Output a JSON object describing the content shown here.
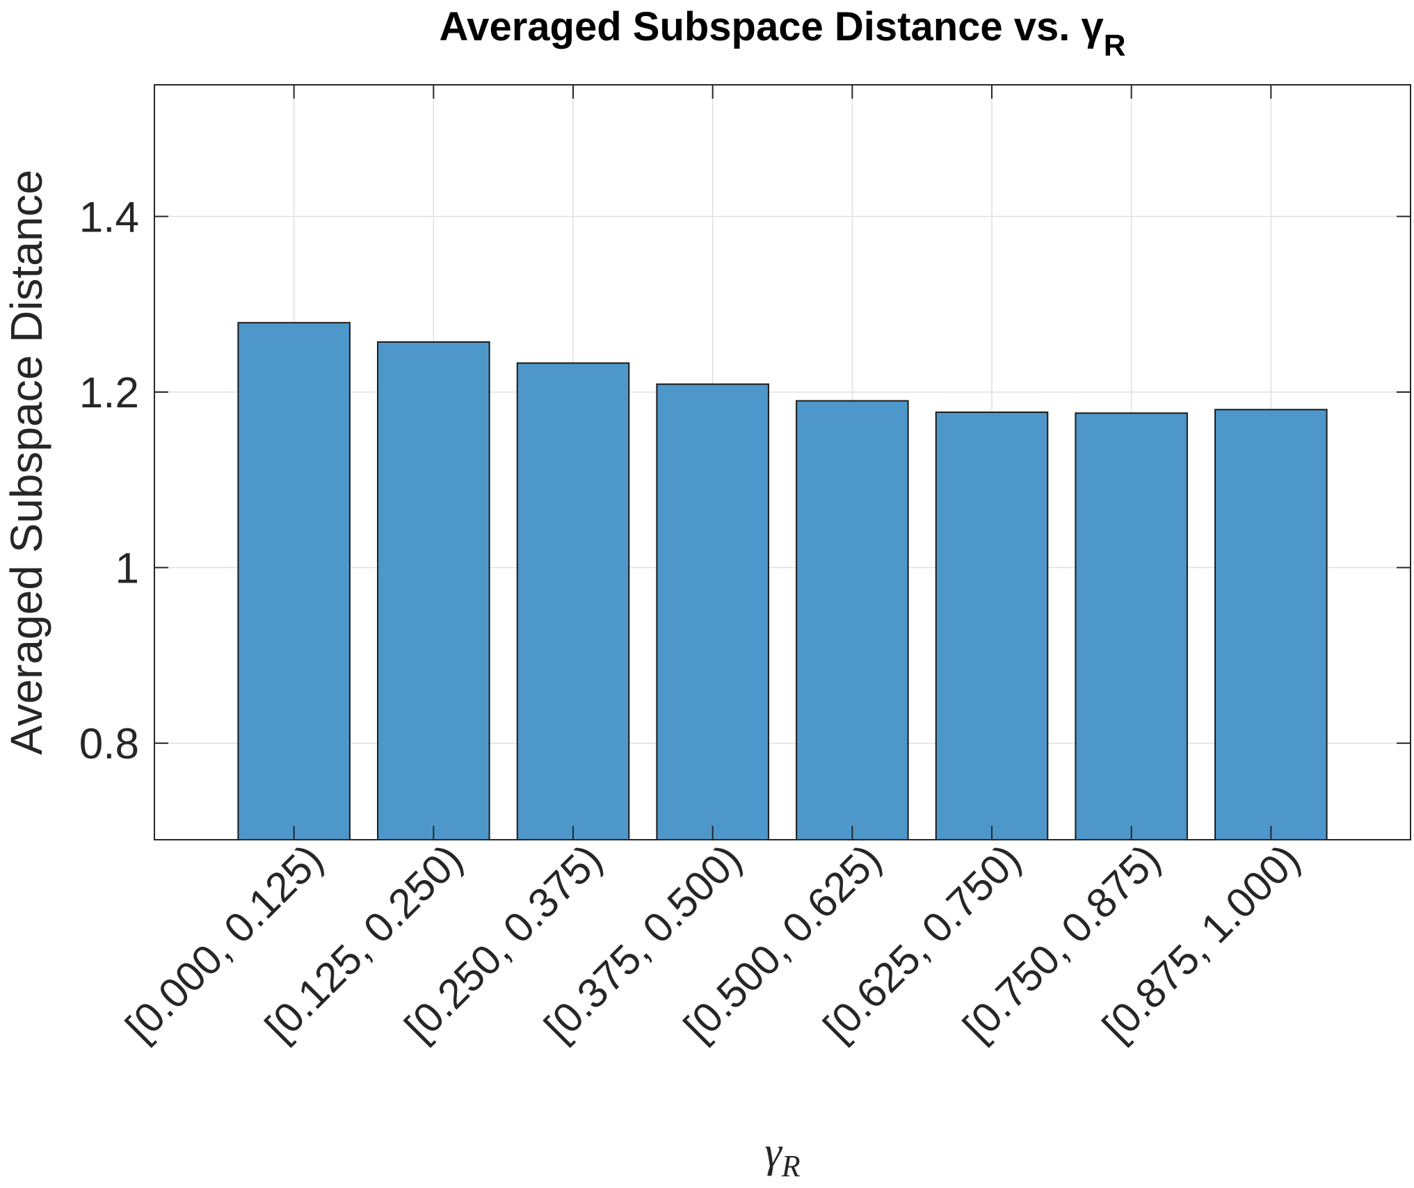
{
  "chart_data": {
    "type": "bar",
    "title": "Averaged Subspace Distance vs. γ",
    "title_subscript": "R",
    "xlabel": "γ",
    "xlabel_subscript": "R",
    "ylabel": "Averaged Subspace Distance",
    "categories": [
      "[0.000, 0.125)",
      "[0.125, 0.250)",
      "[0.250, 0.375)",
      "[0.375, 0.500)",
      "[0.500, 0.625)",
      "[0.625, 0.750)",
      "[0.750, 0.875)",
      "[0.875, 1.000)"
    ],
    "values": [
      1.279,
      1.257,
      1.233,
      1.209,
      1.19,
      1.177,
      1.176,
      1.18
    ],
    "ylim": [
      0.69,
      1.55
    ],
    "yticks": [
      0.8,
      1.0,
      1.2,
      1.4
    ],
    "ytick_labels": [
      "0.8",
      "1",
      "1.2",
      "1.4"
    ],
    "grid": true,
    "colors": {
      "bar_fill": "#4d97ca",
      "bar_edge": "#1a1a1a",
      "grid": "#dfdfdf",
      "axis": "#262626"
    }
  }
}
